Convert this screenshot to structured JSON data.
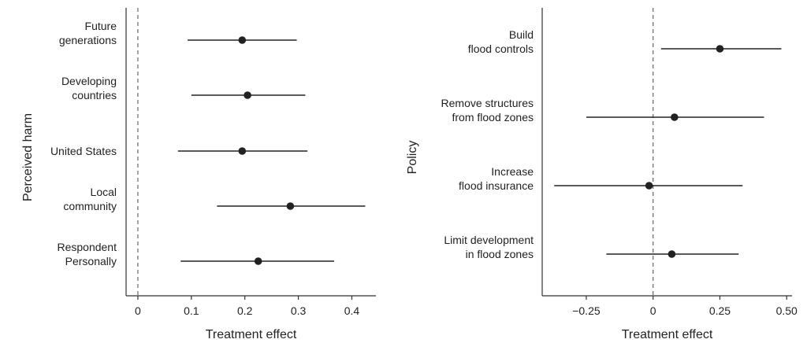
{
  "chart_data": [
    {
      "type": "forest",
      "ylabel": "Perceived harm",
      "xlabel": "Treatment effect",
      "xlim": [
        -0.022,
        0.445
      ],
      "xticks": [
        0,
        0.1,
        0.2,
        0.3,
        0.4
      ],
      "xtick_labels": [
        "0",
        "0.1",
        "0.2",
        "0.3",
        "0.4"
      ],
      "reference_line": 0,
      "categories": [
        [
          "Future",
          "generations"
        ],
        [
          "Developing",
          "countries"
        ],
        [
          "United States"
        ],
        [
          "Local",
          "community"
        ],
        [
          "Respondent",
          "Personally"
        ]
      ],
      "estimates": [
        0.195,
        0.205,
        0.195,
        0.285,
        0.225
      ],
      "ci_low": [
        0.093,
        0.1,
        0.075,
        0.148,
        0.08
      ],
      "ci_high": [
        0.297,
        0.313,
        0.317,
        0.425,
        0.367
      ]
    },
    {
      "type": "forest",
      "ylabel": "Policy",
      "xlabel": "Treatment effect",
      "xlim": [
        -0.415,
        0.52
      ],
      "xticks": [
        -0.25,
        0,
        0.25,
        0.5
      ],
      "xtick_labels": [
        "−0.25",
        "0",
        "0.25",
        "0.50"
      ],
      "reference_line": 0,
      "categories": [
        [
          "Build",
          "flood controls"
        ],
        [
          "Remove structures",
          "from flood zones"
        ],
        [
          "Increase",
          "flood insurance"
        ],
        [
          "Limit development",
          "in flood zones"
        ]
      ],
      "estimates": [
        0.25,
        0.08,
        -0.015,
        0.07
      ],
      "ci_low": [
        0.03,
        -0.25,
        -0.37,
        -0.175
      ],
      "ci_high": [
        0.48,
        0.415,
        0.335,
        0.32
      ]
    }
  ]
}
